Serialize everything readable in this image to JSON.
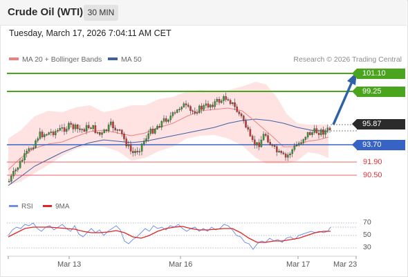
{
  "header": {
    "instrument": "Crude Oil (WTI)",
    "timeframe": "30 MIN"
  },
  "timestamp": "Tuesday, March 17, 2026 7:04:11 AM CET",
  "legend": {
    "ma20": "MA 20 + Bollinger Bands",
    "ma50": "MA 50",
    "copyright": "Research © 2026 Trading Central"
  },
  "colors": {
    "ma20": "#ef7f7f",
    "ma50": "#3f5fa0",
    "resistance": "#4aa41e",
    "pivot": "#3764c4",
    "support": "#e0333a",
    "candle_up": "#3f9a38",
    "candle_down": "#d43a35",
    "bollinger_fill": "#ffe3e3",
    "arrow": "#2f62a5",
    "last_price_bg": "#2b2b2b",
    "rsi": "#6f8fe0",
    "rsi_ma": "#e02424"
  },
  "levels": {
    "r2": "101.10",
    "r1": "99.25",
    "last": "95.87",
    "pivot": "93.70",
    "s1": "91.90",
    "s2": "90.50"
  },
  "rsi_panel": {
    "rsi_label": "RSI",
    "ma_label": "9MA",
    "ticks": [
      "70",
      "50",
      "30"
    ]
  },
  "x_axis": {
    "labels": [
      "Mar 13",
      "Mar 16",
      "Mar 17",
      "Mar 23"
    ]
  }
}
